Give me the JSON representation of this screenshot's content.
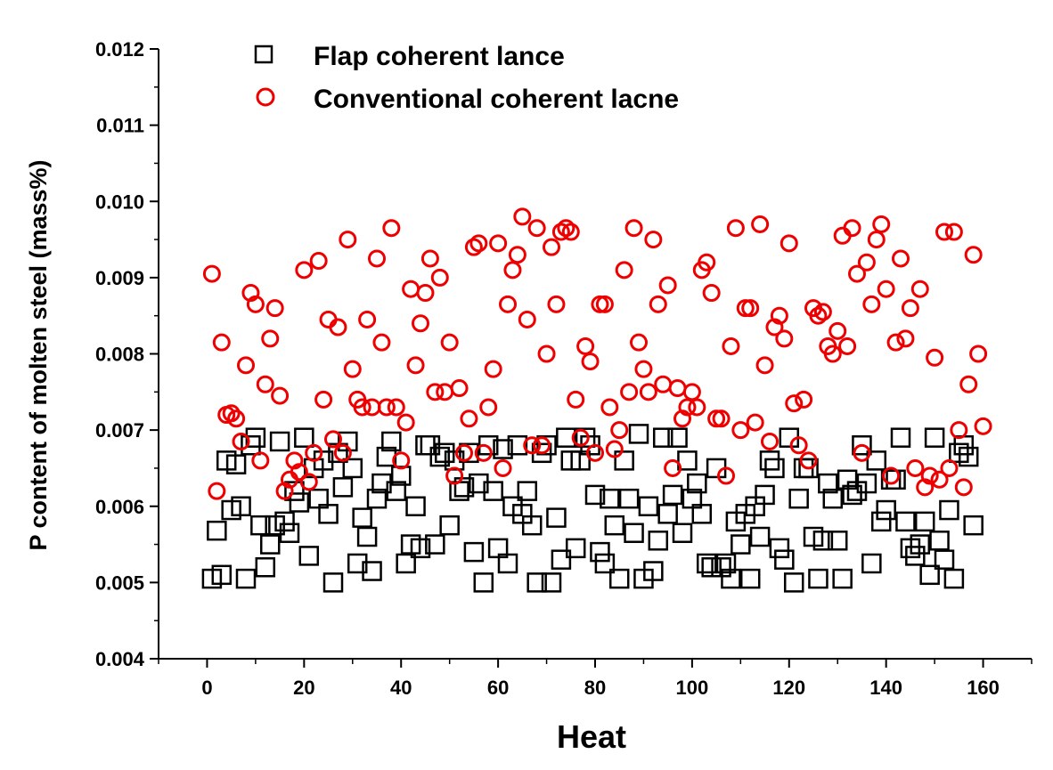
{
  "chart_data": {
    "type": "scatter",
    "title": "",
    "xlabel": "Heat",
    "ylabel": "P content of molten steel (mass%)",
    "xlim": [
      -10,
      170
    ],
    "ylim": [
      0.004,
      0.012
    ],
    "xticks": [
      0,
      20,
      40,
      60,
      80,
      100,
      120,
      140,
      160
    ],
    "xtick_labels": [
      "0",
      "20",
      "40",
      "60",
      "80",
      "100",
      "120",
      "140",
      "160"
    ],
    "yticks": [
      0.004,
      0.005,
      0.006,
      0.007,
      0.008,
      0.009,
      0.01,
      0.011,
      0.012
    ],
    "ytick_labels": [
      "0.004",
      "0.005",
      "0.006",
      "0.007",
      "0.008",
      "0.009",
      "0.010",
      "0.011",
      "0.012"
    ],
    "grid": false,
    "legend_position": "top-left",
    "series": [
      {
        "name": "Flap coherent lance",
        "marker": "square",
        "color": "#000000",
        "values": [
          0.00505,
          0.00568,
          0.0051,
          0.0066,
          0.00595,
          0.00655,
          0.006,
          0.00505,
          0.0068,
          0.0069,
          0.00575,
          0.0052,
          0.0055,
          0.00575,
          0.00685,
          0.0058,
          0.00565,
          0.0062,
          0.00605,
          0.0069,
          0.00535,
          0.0065,
          0.0061,
          0.0066,
          0.0059,
          0.005,
          0.0067,
          0.00625,
          0.00685,
          0.0065,
          0.00525,
          0.00585,
          0.0056,
          0.00515,
          0.0061,
          0.0063,
          0.00665,
          0.00685,
          0.0062,
          0.0064,
          0.00525,
          0.0055,
          0.006,
          0.00545,
          0.0068,
          0.0068,
          0.0055,
          0.00665,
          0.0067,
          0.00575,
          0.0066,
          0.0062,
          0.00625,
          0.0067,
          0.0054,
          0.0063,
          0.005,
          0.0068,
          0.0062,
          0.00545,
          0.00675,
          0.00525,
          0.006,
          0.0068,
          0.0059,
          0.0062,
          0.00575,
          0.005,
          0.0067,
          0.0068,
          0.005,
          0.00585,
          0.0053,
          0.0069,
          0.0066,
          0.00545,
          0.0066,
          0.0069,
          0.0068,
          0.00615,
          0.0054,
          0.00525,
          0.0061,
          0.00575,
          0.00505,
          0.0066,
          0.0061,
          0.00565,
          0.00695,
          0.00505,
          0.006,
          0.00515,
          0.00555,
          0.0069,
          0.0059,
          0.00615,
          0.0069,
          0.00565,
          0.0066,
          0.0061,
          0.0063,
          0.0059,
          0.00525,
          0.0052,
          0.0065,
          0.0052,
          0.00525,
          0.00505,
          0.0058,
          0.0055,
          0.0059,
          0.00505,
          0.006,
          0.0056,
          0.00615,
          0.0066,
          0.0065,
          0.00545,
          0.0053,
          0.0069,
          0.005,
          0.0061,
          0.0065,
          0.0065,
          0.0056,
          0.00505,
          0.00555,
          0.0063,
          0.0061,
          0.00555,
          0.00505,
          0.00635,
          0.00615,
          0.0062,
          0.0068,
          0.0063,
          0.00525,
          0.0066,
          0.0058,
          0.00595,
          0.00635,
          0.00635,
          0.0069,
          0.0058,
          0.00545,
          0.00535,
          0.0055,
          0.0058,
          0.0051,
          0.0069,
          0.00555,
          0.0053,
          0.00595,
          0.00505,
          0.0067,
          0.0068,
          0.00665,
          0.00575
        ]
      },
      {
        "name": "Conventional coherent lacne",
        "marker": "circle",
        "color": "#ee0000",
        "values": [
          0.00905,
          0.0062,
          0.00815,
          0.0072,
          0.00722,
          0.00715,
          0.00685,
          0.00785,
          0.0088,
          0.00865,
          0.0066,
          0.0076,
          0.0082,
          0.0086,
          0.00745,
          0.0062,
          0.00635,
          0.0066,
          0.00645,
          0.0091,
          0.00632,
          0.0067,
          0.00922,
          0.0074,
          0.00845,
          0.00688,
          0.00835,
          0.0067,
          0.0095,
          0.0078,
          0.0074,
          0.0073,
          0.00845,
          0.0073,
          0.00925,
          0.00815,
          0.0073,
          0.00965,
          0.0073,
          0.0066,
          0.0071,
          0.00885,
          0.00785,
          0.0084,
          0.0088,
          0.00925,
          0.0075,
          0.009,
          0.0075,
          0.00815,
          0.0064,
          0.00755,
          0.0067,
          0.00715,
          0.0094,
          0.00945,
          0.0067,
          0.0073,
          0.0078,
          0.00945,
          0.0065,
          0.00865,
          0.0091,
          0.0093,
          0.0098,
          0.00845,
          0.0068,
          0.00965,
          0.0068,
          0.008,
          0.0094,
          0.00865,
          0.0096,
          0.00965,
          0.0096,
          0.0074,
          0.0069,
          0.0081,
          0.0079,
          0.0067,
          0.00865,
          0.00865,
          0.0073,
          0.00675,
          0.007,
          0.0091,
          0.0075,
          0.00965,
          0.00815,
          0.0078,
          0.0075,
          0.0095,
          0.00865,
          0.0076,
          0.0089,
          0.0065,
          0.00755,
          0.00715,
          0.0073,
          0.0075,
          0.0073,
          0.0091,
          0.0092,
          0.0088,
          0.00715,
          0.00715,
          0.0064,
          0.0081,
          0.00965,
          0.007,
          0.0086,
          0.0086,
          0.0071,
          0.0097,
          0.00785,
          0.00685,
          0.00835,
          0.0085,
          0.0082,
          0.00945,
          0.00735,
          0.0068,
          0.0074,
          0.0066,
          0.0086,
          0.0085,
          0.00855,
          0.0081,
          0.008,
          0.0083,
          0.00955,
          0.0081,
          0.00965,
          0.00905,
          0.0067,
          0.0092,
          0.00865,
          0.0095,
          0.0097,
          0.00885,
          0.0064,
          0.00815,
          0.00925,
          0.0082,
          0.0086,
          0.0065,
          0.00885,
          0.00625,
          0.0064,
          0.00795,
          0.00635,
          0.0096,
          0.0065,
          0.0096,
          0.007,
          0.00625,
          0.0076,
          0.0093,
          0.008,
          0.00705
        ]
      }
    ]
  }
}
